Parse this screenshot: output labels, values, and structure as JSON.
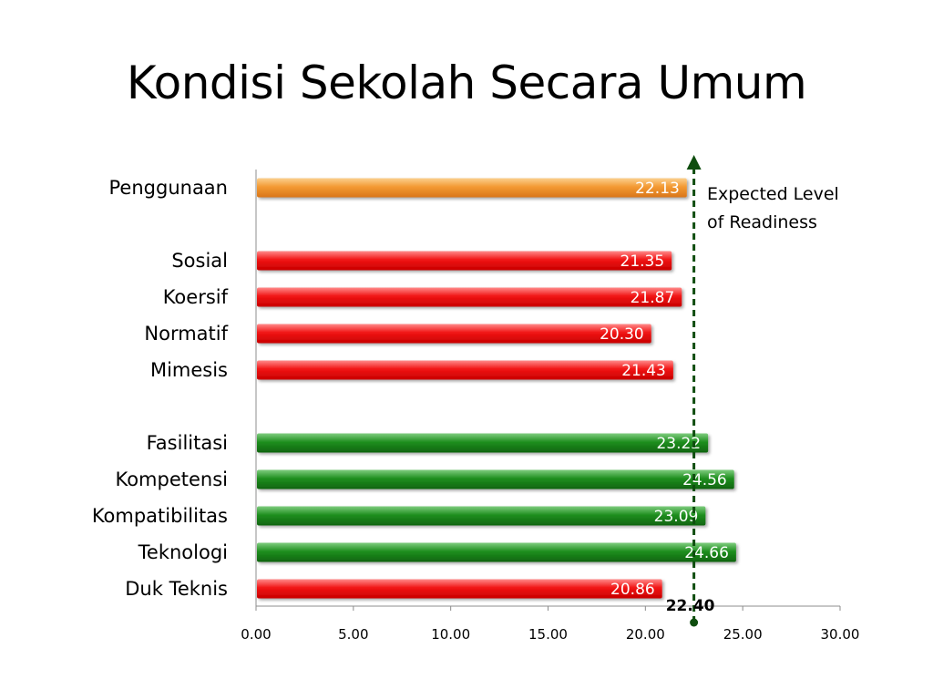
{
  "slide": {
    "title": "Kondisi Sekolah Secara Umum"
  },
  "chart_data": {
    "type": "bar",
    "orientation": "horizontal",
    "title": "",
    "xlabel": "",
    "ylabel": "",
    "xlim": [
      0,
      30
    ],
    "x_ticks": [
      "0.00",
      "5.00",
      "10.00",
      "15.00",
      "20.00",
      "25.00",
      "30.00"
    ],
    "grid": false,
    "categories": [
      "Penggunaan",
      "Sosial",
      "Koersif",
      "Normatif",
      "Mimesis",
      "Fasilitasi",
      "Kompetensi",
      "Kompatibilitas",
      "Teknologi",
      "Duk Teknis"
    ],
    "values": [
      22.13,
      21.35,
      21.87,
      20.3,
      21.43,
      23.22,
      24.56,
      23.09,
      24.66,
      20.86
    ],
    "value_labels": [
      "22.13",
      "21.35",
      "21.87",
      "20.30",
      "21.43",
      "23.22",
      "24.56",
      "23.09",
      "24.66",
      "20.86"
    ],
    "bar_colors": [
      "#f0962e",
      "#ee1010",
      "#ee1010",
      "#ee1010",
      "#ee1010",
      "#1d8a1d",
      "#1d8a1d",
      "#1d8a1d",
      "#1d8a1d",
      "#ee1010"
    ],
    "reference_line": {
      "value": 22.4,
      "label": "22.40",
      "color": "#0e4d0e",
      "style": "dashed-arrow"
    },
    "annotation": [
      "Expected Level",
      "of Readiness"
    ]
  }
}
